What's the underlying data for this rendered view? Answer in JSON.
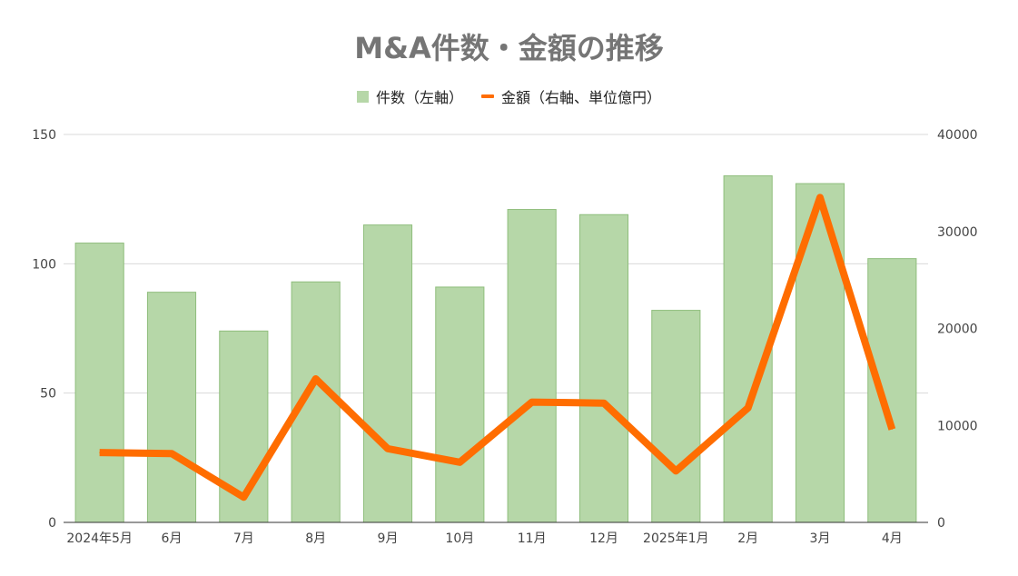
{
  "chart_data": {
    "type": "bar",
    "title": "M&A件数・金額の推移",
    "categories": [
      "2024年5月",
      "6月",
      "7月",
      "8月",
      "9月",
      "10月",
      "11月",
      "12月",
      "2025年1月",
      "2月",
      "3月",
      "4月"
    ],
    "series": [
      {
        "name": "件数（左軸）",
        "type": "bar",
        "axis": "left",
        "color": "#b6d7a8",
        "values": [
          108,
          89,
          74,
          93,
          115,
          91,
          121,
          119,
          82,
          134,
          131,
          102
        ]
      },
      {
        "name": "金額（右軸、単位億円）",
        "type": "line",
        "axis": "right",
        "color": "#ff6d01",
        "values": [
          7200,
          7100,
          2600,
          14800,
          7600,
          6200,
          12400,
          12300,
          5300,
          11800,
          33500,
          9600
        ]
      }
    ],
    "y_left": {
      "min": 0,
      "max": 150,
      "ticks": [
        0,
        50,
        100,
        150
      ]
    },
    "y_right": {
      "min": 0,
      "max": 40000,
      "ticks": [
        0,
        10000,
        20000,
        30000,
        40000
      ]
    },
    "grid": true,
    "legend": "top-center"
  }
}
